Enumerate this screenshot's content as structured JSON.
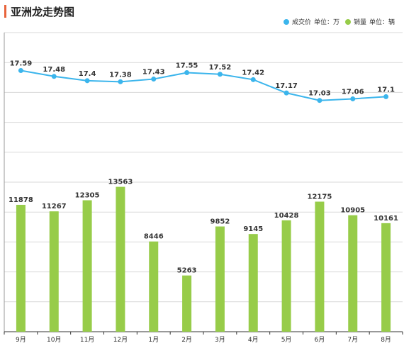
{
  "title": "亚洲龙走势图",
  "legend": {
    "price": {
      "name": "成交价",
      "unit_label": "单位：万",
      "color": "#3bb5ec"
    },
    "sales": {
      "name": "销量",
      "unit_label": "单位：辆",
      "color": "#97cc49"
    }
  },
  "chart_data": {
    "type": "bar",
    "categories": [
      "9月",
      "10月",
      "11月",
      "12月",
      "1月",
      "2月",
      "3月",
      "4月",
      "5月",
      "6月",
      "7月",
      "8月"
    ],
    "series": [
      {
        "name": "成交价",
        "type": "line",
        "unit": "万",
        "values": [
          17.59,
          17.48,
          17.4,
          17.38,
          17.43,
          17.55,
          17.52,
          17.42,
          17.17,
          17.03,
          17.06,
          17.1
        ]
      },
      {
        "name": "销量",
        "type": "bar",
        "unit": "辆",
        "values": [
          11878,
          11267,
          12305,
          13563,
          8446,
          5263,
          9852,
          9145,
          10428,
          12175,
          10905,
          10161
        ]
      }
    ],
    "grid": true,
    "legend_position": "top-right"
  }
}
